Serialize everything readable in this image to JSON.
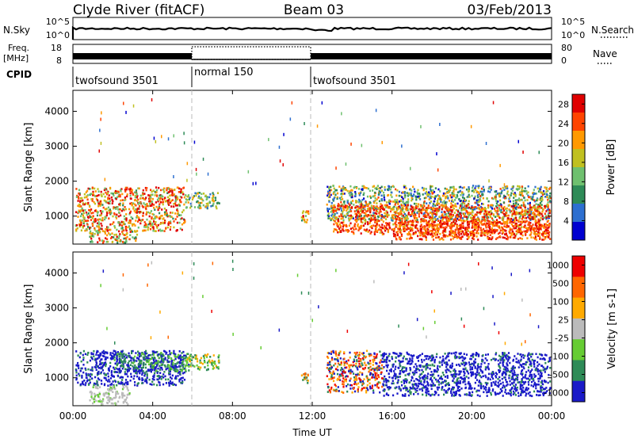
{
  "header": {
    "station": "Clyde River (fitACF)",
    "beam": "Beam 03",
    "date": "03/Feb/2013"
  },
  "noise_panel": {
    "left_label": "N.Sky",
    "right_label": "N.Search",
    "left_ticks": [
      "10^5",
      "10^0"
    ],
    "right_ticks": [
      "10^5",
      "10^0"
    ]
  },
  "freq_panel": {
    "left_label_1": "Freq.",
    "left_label_2": "[MHz]",
    "right_label": "Nave",
    "left_ticks": [
      "18",
      "8"
    ],
    "right_ticks": [
      "80",
      "0"
    ]
  },
  "cpid": {
    "label": "CPID",
    "segments": [
      {
        "name": "twofsound 3501",
        "start_h": 0,
        "end_h": 6
      },
      {
        "name": "normal 150",
        "start_h": 6,
        "end_h": 12
      },
      {
        "name": "twofsound 3501",
        "start_h": 12,
        "end_h": 24
      }
    ]
  },
  "chart_data": [
    {
      "type": "heatmap",
      "title": "Power",
      "ylabel": "Slant Range [km]",
      "xlabel": "Time UT",
      "x_ticks": [
        "00:00",
        "04:00",
        "08:00",
        "12:00",
        "16:00",
        "20:00",
        "00:00"
      ],
      "y_ticks": [
        "1000",
        "2000",
        "3000",
        "4000"
      ],
      "xlim_hours": [
        0,
        24
      ],
      "ylim_km": [
        200,
        4600
      ],
      "colorbar_label": "Power [dB]",
      "colorbar_ticks": [
        "4",
        "8",
        "12",
        "16",
        "20",
        "24",
        "28"
      ],
      "colorbar_range": [
        0,
        30
      ],
      "colors": [
        "#0000d0",
        "#2d6fd0",
        "#2e8b57",
        "#6fc06f",
        "#c0c020",
        "#ff9900",
        "#ff4400",
        "#e00000"
      ],
      "regions": [
        {
          "t0": 0.1,
          "t1": 5.6,
          "r0": 600,
          "r1": 1850,
          "vmin": 10,
          "vmax": 30
        },
        {
          "t0": 5.6,
          "t1": 7.3,
          "r0": 1250,
          "r1": 1700,
          "vmin": 6,
          "vmax": 22
        },
        {
          "t0": 0.8,
          "t1": 3.2,
          "r0": 250,
          "r1": 600,
          "vmin": 8,
          "vmax": 30
        },
        {
          "t0": 11.4,
          "t1": 11.8,
          "r0": 800,
          "r1": 1200,
          "vmin": 10,
          "vmax": 28
        },
        {
          "t0": 12.7,
          "t1": 23.9,
          "r0": 900,
          "r1": 1900,
          "vmin": 2,
          "vmax": 24
        },
        {
          "t0": 13.0,
          "t1": 23.9,
          "r0": 500,
          "r1": 1350,
          "vmin": 18,
          "vmax": 30
        },
        {
          "t0": 16.0,
          "t1": 23.9,
          "r0": 350,
          "r1": 900,
          "vmin": 20,
          "vmax": 30
        }
      ]
    },
    {
      "type": "heatmap",
      "title": "Velocity",
      "ylabel": "Slant Range [km]",
      "xlabel": "Time UT",
      "x_ticks": [
        "00:00",
        "04:00",
        "08:00",
        "12:00",
        "16:00",
        "20:00",
        "00:00"
      ],
      "y_ticks": [
        "1000",
        "2000",
        "3000",
        "4000"
      ],
      "xlim_hours": [
        0,
        24
      ],
      "ylim_km": [
        200,
        4600
      ],
      "colorbar_label": "Velocity [m s-1]",
      "colorbar_ticks": [
        "1000",
        "500",
        "100",
        "25",
        "-25",
        "-100",
        "-500",
        "-1000"
      ],
      "colors": [
        "#1a1ac8",
        "#2e8b57",
        "#66cc33",
        "#bbbbbb",
        "#ffaa00",
        "#ff6600",
        "#ee0000"
      ],
      "regions": [
        {
          "t0": 0.1,
          "t1": 5.6,
          "r0": 800,
          "r1": 1800,
          "palette": [
            0,
            0,
            0,
            1
          ]
        },
        {
          "t0": 2.0,
          "t1": 5.8,
          "r0": 1200,
          "r1": 1750,
          "palette": [
            1,
            2,
            1,
            0
          ]
        },
        {
          "t0": 5.6,
          "t1": 7.3,
          "r0": 1250,
          "r1": 1700,
          "palette": [
            1,
            2,
            4
          ]
        },
        {
          "t0": 0.8,
          "t1": 2.8,
          "r0": 250,
          "r1": 800,
          "palette": [
            3,
            3,
            2,
            3
          ]
        },
        {
          "t0": 11.4,
          "t1": 11.8,
          "r0": 800,
          "r1": 1200,
          "palette": [
            4,
            5,
            1
          ]
        },
        {
          "t0": 12.7,
          "t1": 15.5,
          "r0": 600,
          "r1": 1800,
          "palette": [
            5,
            6,
            4,
            1,
            0
          ]
        },
        {
          "t0": 15.5,
          "t1": 23.9,
          "r0": 500,
          "r1": 1750,
          "palette": [
            0,
            0,
            0,
            1,
            0
          ]
        }
      ]
    }
  ]
}
